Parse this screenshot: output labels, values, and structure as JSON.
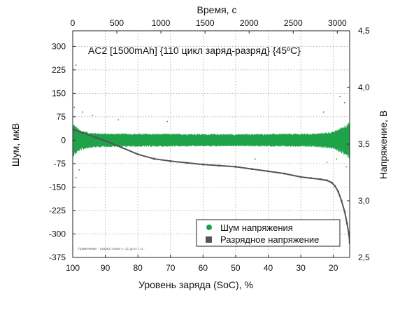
{
  "chart_data": {
    "type": "scatter",
    "title": "AC2 [1500mAh] {110 цикл заряд-разряд} {45ºC}",
    "footnote": "Примечание: - разряд током I = 1C до U = U...",
    "xlabel": "Уровень заряда (SoC), %",
    "x2label": "Время, с",
    "ylabel": "Шум, мкВ",
    "y2label": "Напряжение, В",
    "xlim": [
      100,
      15
    ],
    "x_ticks": [
      100,
      90,
      80,
      70,
      60,
      50,
      40,
      30,
      20
    ],
    "x2lim": [
      0,
      3140
    ],
    "x2_ticks": [
      0,
      500,
      1000,
      1500,
      2000,
      2500,
      3000
    ],
    "ylim": [
      -375,
      350
    ],
    "y_ticks": [
      300,
      225,
      150,
      75,
      0,
      -75,
      -150,
      -225,
      -300,
      -375
    ],
    "y2lim": [
      2.5,
      4.5
    ],
    "y2_ticks": [
      "2,5",
      "3,0",
      "3,5",
      "4,0",
      "4,5"
    ],
    "y2_tick_values": [
      2.5,
      3.0,
      3.5,
      4.0,
      4.5
    ],
    "grid": true,
    "legend_position": "bottom-right",
    "series": [
      {
        "name": "Шум напряжения",
        "color": "#1fa34a",
        "axis": "left",
        "kind": "noise-band",
        "band": [
          {
            "x": 100,
            "amp": 55
          },
          {
            "x": 98,
            "amp": 35
          },
          {
            "x": 95,
            "amp": 25
          },
          {
            "x": 90,
            "amp": 22
          },
          {
            "x": 50,
            "amp": 20
          },
          {
            "x": 25,
            "amp": 22
          },
          {
            "x": 20,
            "amp": 28
          },
          {
            "x": 17,
            "amp": 45
          },
          {
            "x": 15,
            "amp": 60
          }
        ],
        "outliers": [
          {
            "x": 99,
            "y": 240
          },
          {
            "x": 99.5,
            "y": 105
          },
          {
            "x": 97,
            "y": 90
          },
          {
            "x": 98,
            "y": -95
          },
          {
            "x": 99,
            "y": -120
          },
          {
            "x": 94,
            "y": 80
          },
          {
            "x": 86,
            "y": 65
          },
          {
            "x": 18,
            "y": 140
          },
          {
            "x": 19,
            "y": -60
          },
          {
            "x": 16,
            "y": -85
          },
          {
            "x": 23,
            "y": 90
          },
          {
            "x": 16.5,
            "y": 120
          },
          {
            "x": 22,
            "y": -70
          },
          {
            "x": 71,
            "y": 60
          },
          {
            "x": 44,
            "y": -60
          }
        ]
      },
      {
        "name": "Разрядное напряжение",
        "color": "#555555",
        "axis": "right",
        "points": [
          [
            100,
            3.63
          ],
          [
            97,
            3.6
          ],
          [
            93,
            3.56
          ],
          [
            90,
            3.53
          ],
          [
            85,
            3.47
          ],
          [
            80,
            3.41
          ],
          [
            75,
            3.37
          ],
          [
            70,
            3.35
          ],
          [
            65,
            3.335
          ],
          [
            60,
            3.32
          ],
          [
            55,
            3.31
          ],
          [
            50,
            3.3
          ],
          [
            45,
            3.28
          ],
          [
            40,
            3.26
          ],
          [
            35,
            3.24
          ],
          [
            30,
            3.21
          ],
          [
            27,
            3.2
          ],
          [
            24,
            3.19
          ],
          [
            22,
            3.18
          ],
          [
            20.5,
            3.16
          ],
          [
            19.5,
            3.13
          ],
          [
            18.5,
            3.08
          ],
          [
            17.5,
            3.0
          ],
          [
            16.5,
            2.9
          ],
          [
            15.8,
            2.8
          ],
          [
            15.2,
            2.7
          ],
          [
            15,
            2.63
          ]
        ]
      }
    ]
  }
}
